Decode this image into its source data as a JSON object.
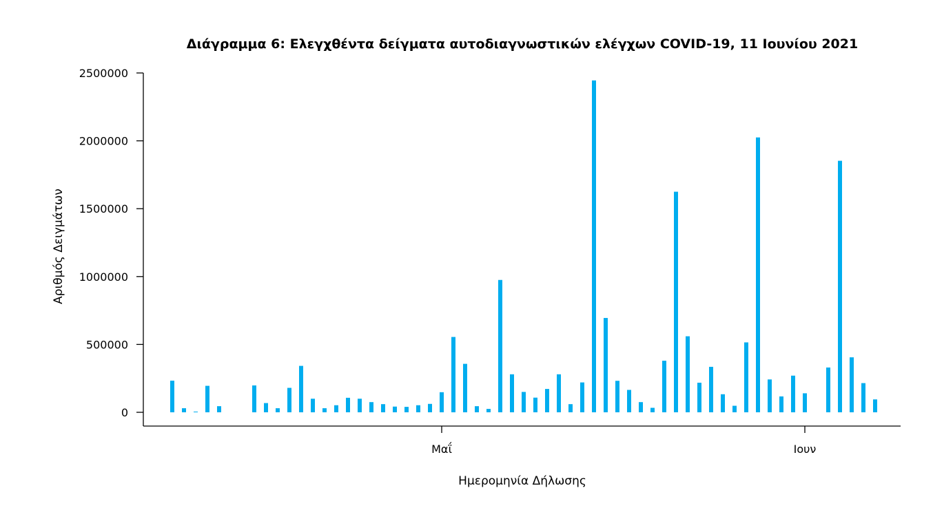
{
  "chart_data": {
    "type": "bar",
    "title": "Διάγραμμα 6: Ελεγχθέντα δείγματα αυτοδιαγνωστικών ελέγχων COVID-19, 11 Ιουνίου 2021",
    "xlabel": "Ημερομηνία Δήλωσης",
    "ylabel": "Αριθμός Δειγμάτων",
    "ylim": [
      0,
      2500000
    ],
    "yticks": [
      0,
      500000,
      1000000,
      1500000,
      2000000,
      2500000
    ],
    "ytick_labels": [
      "0",
      "500000",
      "1000000",
      "1500000",
      "2000000",
      "2500000"
    ],
    "x_date_range": [
      "2021-04-08",
      "2021-06-10"
    ],
    "xticks": [
      {
        "date": "2021-05-01",
        "label": "Μαΐ"
      },
      {
        "date": "2021-06-01",
        "label": "Ιουν"
      }
    ],
    "bar_color": "#00adef",
    "grid": false,
    "series": [
      {
        "values": [
          233000,
          30000,
          5000,
          195000,
          45000,
          0,
          0,
          198000,
          68000,
          30000,
          180000,
          342000,
          100000,
          30000,
          52000,
          107000,
          100000,
          75000,
          60000,
          42000,
          40000,
          52000,
          62000,
          148000,
          555000,
          357000,
          45000,
          25000,
          975000,
          280000,
          150000,
          108000,
          172000,
          280000,
          60000,
          220000,
          2445000,
          695000,
          232000,
          165000,
          75000,
          33000,
          380000,
          1625000,
          560000,
          218000,
          335000,
          133000,
          48000,
          515000,
          2025000,
          242000,
          117000,
          270000,
          140000,
          0,
          330000,
          1853000,
          405000,
          215000,
          95000
        ]
      }
    ]
  }
}
